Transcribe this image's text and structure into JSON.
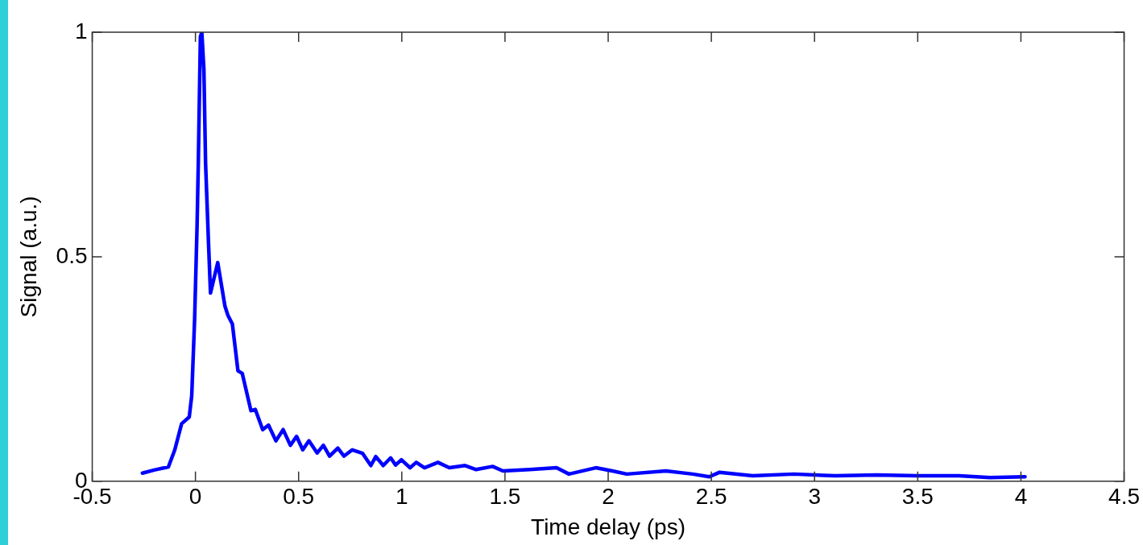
{
  "chart_data": {
    "type": "line",
    "xlabel": "Time delay (ps)",
    "ylabel": "Signal (a.u.)",
    "xlim": [
      -0.5,
      4.5
    ],
    "xticks": [
      -0.5,
      0,
      0.5,
      1,
      1.5,
      2,
      2.5,
      3,
      3.5,
      4,
      4.5
    ],
    "ylim": [
      0,
      1
    ],
    "yticks": [
      0,
      0.5,
      1
    ],
    "grid": false,
    "legend": false,
    "marker": "none",
    "line_style": "solid",
    "series": [
      {
        "color": "#0000ff",
        "x": [
          -0.257,
          -0.2,
          -0.131,
          -0.1,
          -0.067,
          -0.03,
          -0.018,
          -0.004,
          0.008,
          0.014,
          0.024,
          0.031,
          0.041,
          0.049,
          0.063,
          0.073,
          0.108,
          0.143,
          0.157,
          0.179,
          0.206,
          0.227,
          0.269,
          0.29,
          0.326,
          0.354,
          0.39,
          0.425,
          0.46,
          0.49,
          0.52,
          0.55,
          0.59,
          0.62,
          0.65,
          0.69,
          0.72,
          0.76,
          0.81,
          0.85,
          0.874,
          0.91,
          0.946,
          0.97,
          0.998,
          1.04,
          1.07,
          1.11,
          1.175,
          1.23,
          1.307,
          1.36,
          1.44,
          1.49,
          1.62,
          1.75,
          1.81,
          1.94,
          2.02,
          2.09,
          2.28,
          2.41,
          2.49,
          2.54,
          2.7,
          2.9,
          3.1,
          3.3,
          3.5,
          3.7,
          3.85,
          4.02
        ],
        "values": [
          0.018,
          0.025,
          0.032,
          0.07,
          0.128,
          0.143,
          0.19,
          0.36,
          0.57,
          0.71,
          0.99,
          1.0,
          0.917,
          0.71,
          0.535,
          0.419,
          0.487,
          0.39,
          0.37,
          0.35,
          0.246,
          0.24,
          0.157,
          0.16,
          0.115,
          0.125,
          0.09,
          0.115,
          0.08,
          0.1,
          0.07,
          0.09,
          0.063,
          0.08,
          0.056,
          0.074,
          0.056,
          0.07,
          0.062,
          0.035,
          0.055,
          0.035,
          0.052,
          0.036,
          0.048,
          0.03,
          0.042,
          0.03,
          0.042,
          0.03,
          0.035,
          0.026,
          0.033,
          0.023,
          0.026,
          0.03,
          0.016,
          0.03,
          0.023,
          0.016,
          0.023,
          0.016,
          0.01,
          0.02,
          0.012,
          0.016,
          0.012,
          0.014,
          0.012,
          0.012,
          0.008,
          0.01
        ]
      }
    ]
  }
}
